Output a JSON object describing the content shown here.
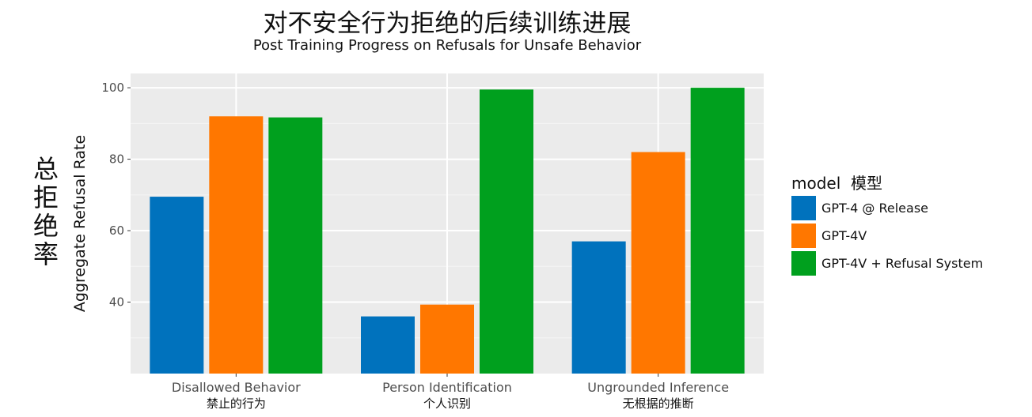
{
  "chart_data": {
    "type": "bar",
    "title": "对不安全行为拒绝的后续训练进展",
    "subtitle": "Post Training Progress on Refusals for Unsafe Behavior",
    "ylabel": "Aggregate Refusal Rate",
    "ylabel_cn": "总拒绝率",
    "xlabel": "",
    "ylim": [
      20,
      104
    ],
    "yticks": [
      40,
      60,
      80,
      100
    ],
    "grid": true,
    "legend_position": "right",
    "legend_title": "model  模型",
    "categories": [
      "Disallowed Behavior",
      "Person Identification",
      "Ungrounded Inference"
    ],
    "categories_cn": [
      "禁止的行为",
      "个人识别",
      "无根据的推断"
    ],
    "series": [
      {
        "name": "GPT-4 @ Release",
        "color": "#0072BD",
        "values": [
          69.5,
          36,
          57
        ]
      },
      {
        "name": "GPT-4V",
        "color": "#FF7700",
        "values": [
          92,
          39.3,
          82
        ]
      },
      {
        "name": "GPT-4V + Refusal System",
        "color": "#00A01E",
        "values": [
          91.7,
          99.5,
          100
        ]
      }
    ]
  }
}
